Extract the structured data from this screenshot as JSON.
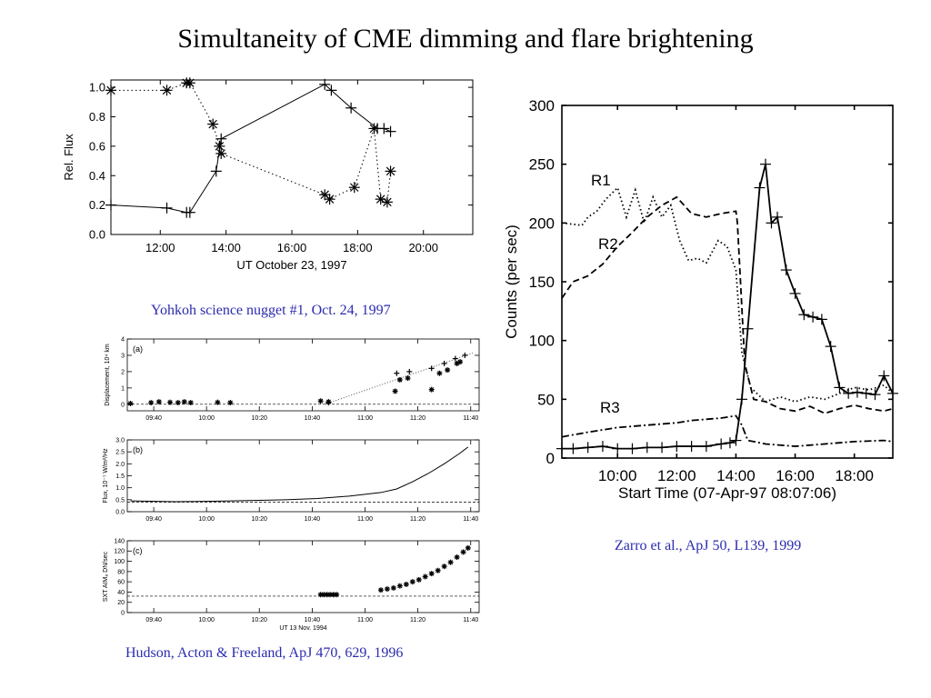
{
  "slide": {
    "title": "Simultaneity of CME dimming and flare brightening",
    "captions": {
      "yohkoh": "Yohkoh science nugget #1, Oct. 24, 1997",
      "hudson": "Hudson, Acton & Freeland, ApJ 470, 629, 1996",
      "zarro": "Zarro et al., ApJ 50, L139, 1999"
    }
  },
  "chart_data": [
    {
      "id": "yohkoh",
      "type": "line",
      "xlabel": "UT October 23, 1997",
      "ylabel": "Rel. Flux",
      "xlim": [
        10.5,
        21.5
      ],
      "ylim": [
        0,
        1.05
      ],
      "xticks": [
        {
          "v": 12,
          "label": "12:00"
        },
        {
          "v": 14,
          "label": "14:00"
        },
        {
          "v": 16,
          "label": "16:00"
        },
        {
          "v": 18,
          "label": "18:00"
        },
        {
          "v": 20,
          "label": "20:00"
        }
      ],
      "yticks": [
        {
          "v": 0,
          "label": "0.0"
        },
        {
          "v": 0.2,
          "label": "0.2"
        },
        {
          "v": 0.4,
          "label": "0.4"
        },
        {
          "v": 0.6,
          "label": "0.6"
        },
        {
          "v": 0.8,
          "label": "0.8"
        },
        {
          "v": 1.0,
          "label": "1.0"
        }
      ],
      "series": [
        {
          "style": "solid",
          "marker": "plus",
          "x": [
            10.5,
            12.2,
            12.8,
            12.9,
            13.7,
            13.85,
            17.0,
            17.2,
            17.8,
            18.6,
            18.8,
            19.0
          ],
          "y": [
            0.2,
            0.18,
            0.15,
            0.15,
            0.43,
            0.65,
            1.02,
            0.98,
            0.86,
            0.72,
            0.72,
            0.7
          ]
        },
        {
          "style": "dotted",
          "marker": "star",
          "x": [
            10.5,
            12.2,
            12.8,
            12.9,
            13.6,
            13.8,
            13.85,
            17.0,
            17.15,
            17.9,
            18.5,
            18.7,
            18.9,
            19.0
          ],
          "y": [
            0.98,
            0.98,
            1.03,
            1.03,
            0.75,
            0.6,
            0.55,
            0.27,
            0.24,
            0.32,
            0.72,
            0.24,
            0.22,
            0.43
          ]
        }
      ]
    },
    {
      "id": "hudson-a",
      "type": "scatter",
      "panel": "(a)",
      "ylabel": "Displacement, 10⁴ km",
      "xlim": [
        9.5,
        11.72
      ],
      "ylim": [
        -0.4,
        4
      ],
      "xticks": [
        {
          "v": 9.667,
          "label": "09:40"
        },
        {
          "v": 10.0,
          "label": "10:00"
        },
        {
          "v": 10.333,
          "label": "10:20"
        },
        {
          "v": 10.667,
          "label": "10:40"
        },
        {
          "v": 11.0,
          "label": "11:00"
        },
        {
          "v": 11.333,
          "label": "11:20"
        },
        {
          "v": 11.667,
          "label": "11:40"
        }
      ],
      "yticks": [
        {
          "v": 0,
          "label": "0"
        },
        {
          "v": 1,
          "label": "1"
        },
        {
          "v": 2,
          "label": "2"
        },
        {
          "v": 3,
          "label": "3"
        },
        {
          "v": 4,
          "label": "4"
        }
      ],
      "series": [
        {
          "marker": "star",
          "x": [
            9.52,
            9.65,
            9.7,
            9.77,
            9.82,
            9.86,
            9.9,
            10.07,
            10.15,
            10.72,
            10.77,
            11.19,
            11.22,
            11.27,
            11.42,
            11.47,
            11.52,
            11.58,
            11.6
          ],
          "y": [
            0.05,
            0.1,
            0.15,
            0.12,
            0.1,
            0.15,
            0.1,
            0.12,
            0.1,
            0.2,
            0.15,
            0.8,
            1.5,
            1.6,
            0.9,
            1.9,
            2.1,
            2.5,
            2.6
          ]
        },
        {
          "marker": "plus",
          "x": [
            10.77,
            11.2,
            11.28,
            11.42,
            11.5,
            11.57,
            11.63
          ],
          "y": [
            0.1,
            1.9,
            2.0,
            2.2,
            2.5,
            2.8,
            3.0
          ]
        }
      ],
      "fit": {
        "x": [
          10.75,
          11.68
        ],
        "y": [
          0.0,
          3.15
        ]
      },
      "baseline": 0
    },
    {
      "id": "hudson-b",
      "type": "line",
      "panel": "(b)",
      "ylabel": "Flux, 10⁻⁷ W/m²/Hz",
      "xlim": [
        9.5,
        11.72
      ],
      "ylim": [
        0,
        3
      ],
      "xticks": [
        {
          "v": 9.667,
          "label": "09:40"
        },
        {
          "v": 10.0,
          "label": "10:00"
        },
        {
          "v": 10.333,
          "label": "10:20"
        },
        {
          "v": 10.667,
          "label": "10:40"
        },
        {
          "v": 11.0,
          "label": "11:00"
        },
        {
          "v": 11.333,
          "label": "11:20"
        },
        {
          "v": 11.667,
          "label": "11:40"
        }
      ],
      "yticks": [
        {
          "v": 0,
          "label": "0.0"
        },
        {
          "v": 0.5,
          "label": "0.5"
        },
        {
          "v": 1.0,
          "label": "1.0"
        },
        {
          "v": 1.5,
          "label": "1.5"
        },
        {
          "v": 2.0,
          "label": "2.0"
        },
        {
          "v": 2.5,
          "label": "2.5"
        },
        {
          "v": 3.0,
          "label": "3.0"
        }
      ],
      "series": [
        {
          "style": "solid",
          "x": [
            9.52,
            9.8,
            10.0,
            10.3,
            10.5,
            10.7,
            10.9,
            11.1,
            11.2,
            11.3,
            11.4,
            11.5,
            11.6,
            11.65
          ],
          "y": [
            0.45,
            0.42,
            0.43,
            0.47,
            0.5,
            0.55,
            0.65,
            0.8,
            0.95,
            1.25,
            1.6,
            2.0,
            2.45,
            2.7
          ]
        }
      ],
      "baseline": 0.4
    },
    {
      "id": "hudson-c",
      "type": "scatter",
      "panel": "(c)",
      "ylabel": "SXT AIM₈ DN/sec",
      "xlabel": "UT 13 Nov. 1994",
      "xlim": [
        9.5,
        11.72
      ],
      "ylim": [
        0,
        140
      ],
      "xticks": [
        {
          "v": 9.667,
          "label": "09:40"
        },
        {
          "v": 10.0,
          "label": "10:00"
        },
        {
          "v": 10.333,
          "label": "10:20"
        },
        {
          "v": 10.667,
          "label": "10:40"
        },
        {
          "v": 11.0,
          "label": "11:00"
        },
        {
          "v": 11.333,
          "label": "11:20"
        },
        {
          "v": 11.667,
          "label": "11:40"
        }
      ],
      "yticks": [
        {
          "v": 0,
          "label": "0"
        },
        {
          "v": 20,
          "label": "20"
        },
        {
          "v": 40,
          "label": "40"
        },
        {
          "v": 60,
          "label": "60"
        },
        {
          "v": 80,
          "label": "80"
        },
        {
          "v": 100,
          "label": "100"
        },
        {
          "v": 120,
          "label": "120"
        },
        {
          "v": 140,
          "label": "140"
        }
      ],
      "series": [
        {
          "marker": "star",
          "x": [
            10.72,
            10.74,
            10.76,
            10.78,
            10.8,
            10.82,
            11.1,
            11.14,
            11.18,
            11.22,
            11.26,
            11.3,
            11.34,
            11.38,
            11.42,
            11.46,
            11.5,
            11.54,
            11.58,
            11.62,
            11.65
          ],
          "y": [
            35,
            35,
            35,
            35,
            35,
            35,
            44,
            46,
            48,
            52,
            55,
            60,
            64,
            70,
            76,
            82,
            90,
            98,
            108,
            118,
            126
          ]
        }
      ],
      "baseline": 32
    },
    {
      "id": "zarro",
      "type": "line",
      "xlabel": "Start Time (07-Apr-97 08:07:06)",
      "ylabel": "Counts (per sec)",
      "xlim": [
        8.12,
        19.3
      ],
      "ylim": [
        0,
        300
      ],
      "xticks": [
        {
          "v": 10,
          "label": "10:00"
        },
        {
          "v": 12,
          "label": "12:00"
        },
        {
          "v": 14,
          "label": "14:00"
        },
        {
          "v": 16,
          "label": "16:00"
        },
        {
          "v": 18,
          "label": "18:00"
        }
      ],
      "yticks": [
        {
          "v": 0,
          "label": "0"
        },
        {
          "v": 50,
          "label": "50"
        },
        {
          "v": 100,
          "label": "100"
        },
        {
          "v": 150,
          "label": "150"
        },
        {
          "v": 200,
          "label": "200"
        },
        {
          "v": 250,
          "label": "250"
        },
        {
          "v": 300,
          "label": "300"
        }
      ],
      "series": [
        {
          "name": "R1",
          "style": "dotted",
          "x": [
            8.12,
            8.8,
            9.0,
            9.3,
            9.6,
            10.0,
            10.3,
            10.6,
            10.9,
            11.2,
            11.5,
            11.8,
            12.1,
            12.4,
            12.7,
            13.0,
            13.4,
            13.7,
            14.0,
            14.2,
            14.5,
            15.0,
            15.5,
            16.0,
            16.5,
            17.0,
            17.5,
            18.0,
            18.5,
            19.0,
            19.3
          ],
          "y": [
            200,
            198,
            205,
            210,
            220,
            230,
            205,
            228,
            200,
            222,
            205,
            215,
            185,
            168,
            170,
            166,
            185,
            180,
            160,
            90,
            60,
            48,
            52,
            48,
            52,
            50,
            55,
            60,
            58,
            62,
            55
          ]
        },
        {
          "name": "R2",
          "style": "dashed",
          "x": [
            8.12,
            8.5,
            9.0,
            9.5,
            10.0,
            10.5,
            11.0,
            11.5,
            12.0,
            12.5,
            13.0,
            13.5,
            14.0,
            14.05,
            14.3,
            14.6,
            15.0,
            15.5,
            16.0,
            16.5,
            17.0,
            17.5,
            18.0,
            18.5,
            19.0,
            19.3
          ],
          "y": [
            136,
            150,
            155,
            165,
            180,
            192,
            205,
            215,
            222,
            208,
            205,
            208,
            210,
            200,
            80,
            50,
            48,
            42,
            40,
            44,
            38,
            42,
            45,
            42,
            40,
            42
          ]
        },
        {
          "name": "R3",
          "style": "dashdot",
          "x": [
            8.12,
            9.0,
            10.0,
            11.0,
            12.0,
            12.5,
            13.0,
            13.5,
            14.0,
            14.2,
            14.4,
            15.0,
            16.0,
            17.0,
            18.0,
            19.0,
            19.3
          ],
          "y": [
            18,
            22,
            26,
            28,
            30,
            32,
            33,
            34,
            36,
            28,
            15,
            12,
            10,
            12,
            14,
            15,
            14
          ]
        },
        {
          "name": "",
          "style": "solid",
          "marker": "plus",
          "x": [
            8.12,
            8.5,
            9.0,
            9.5,
            10.0,
            10.5,
            11.0,
            11.5,
            12.0,
            12.5,
            13.0,
            13.5,
            13.8,
            14.0,
            14.2,
            14.4,
            14.8,
            15.0,
            15.2,
            15.4,
            15.7,
            16.0,
            16.3,
            16.6,
            16.9,
            17.2,
            17.5,
            17.8,
            18.1,
            18.4,
            18.7,
            19.0,
            19.3
          ],
          "y": [
            8,
            8,
            9,
            10,
            8,
            8,
            9,
            9,
            10,
            10,
            10,
            12,
            13,
            15,
            50,
            110,
            230,
            250,
            200,
            205,
            160,
            140,
            122,
            120,
            118,
            95,
            60,
            55,
            56,
            55,
            54,
            70,
            55
          ]
        }
      ]
    }
  ]
}
